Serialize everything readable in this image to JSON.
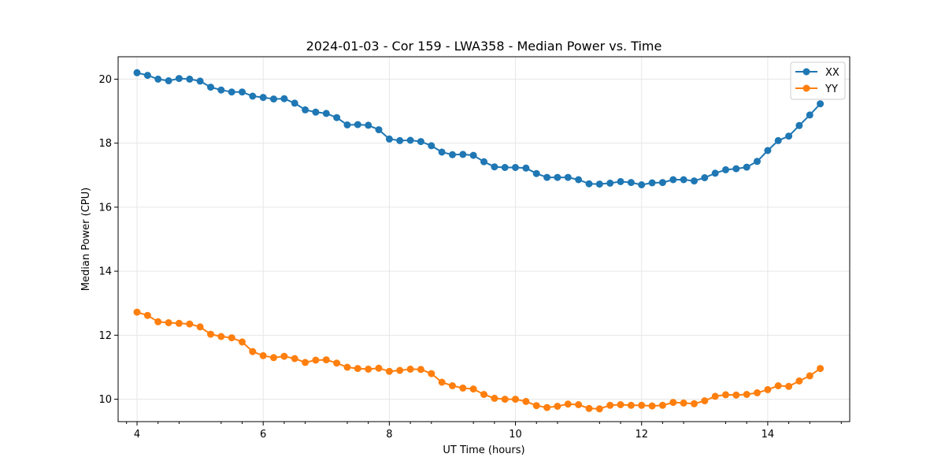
{
  "chart_data": {
    "type": "line",
    "title": "2024-01-03 - Cor 159 - LWA358 - Median Power vs. Time",
    "xlabel": "UT Time (hours)",
    "ylabel": "Median Power (CPU)",
    "xlim": [
      3.7,
      15.3
    ],
    "ylim": [
      9.3,
      20.7
    ],
    "xticks": [
      4,
      6,
      8,
      10,
      12,
      14
    ],
    "yticks": [
      10,
      12,
      14,
      16,
      18,
      20
    ],
    "xtick_labels": [
      "4",
      "6",
      "8",
      "10",
      "12",
      "14"
    ],
    "ytick_labels": [
      "10",
      "12",
      "14",
      "16",
      "18",
      "20"
    ],
    "x_minor_ticks": [
      3.8333,
      4.3333,
      4.6667,
      5.3333,
      5.6667,
      6.3333,
      6.6667,
      7.3333,
      7.6667,
      8.3333,
      8.6667,
      9.3333,
      9.6667,
      10.3333,
      10.6667,
      11.3333,
      11.6667,
      12.3333,
      12.6667,
      13.3333,
      13.6667,
      14.3333,
      14.6667,
      15.1667
    ],
    "grid": true,
    "legend_position": "top-right",
    "x": [
      4.0,
      4.1667,
      4.3333,
      4.5,
      4.6667,
      4.8333,
      5.0,
      5.1667,
      5.3333,
      5.5,
      5.6667,
      5.8333,
      6.0,
      6.1667,
      6.3333,
      6.5,
      6.6667,
      6.8333,
      7.0,
      7.1667,
      7.3333,
      7.5,
      7.6667,
      7.8333,
      8.0,
      8.1667,
      8.3333,
      8.5,
      8.6667,
      8.8333,
      9.0,
      9.1667,
      9.3333,
      9.5,
      9.6667,
      9.8333,
      10.0,
      10.1667,
      10.3333,
      10.5,
      10.6667,
      10.8333,
      11.0,
      11.1667,
      11.3333,
      11.5,
      11.6667,
      11.8333,
      12.0,
      12.1667,
      12.3333,
      12.5,
      12.6667,
      12.8333,
      13.0,
      13.1667,
      13.3333,
      13.5,
      13.6667,
      13.8333,
      14.0,
      14.1667,
      14.3333,
      14.5,
      14.6667,
      14.8333
    ],
    "series": [
      {
        "name": "XX",
        "color": "#1f77b4",
        "values": [
          20.2,
          20.12,
          20.0,
          19.95,
          20.02,
          20.0,
          19.94,
          19.75,
          19.66,
          19.6,
          19.6,
          19.47,
          19.43,
          19.38,
          19.39,
          19.25,
          19.04,
          18.97,
          18.93,
          18.8,
          18.57,
          18.58,
          18.56,
          18.42,
          18.13,
          18.08,
          18.09,
          18.05,
          17.92,
          17.72,
          17.64,
          17.65,
          17.62,
          17.42,
          17.26,
          17.24,
          17.24,
          17.22,
          17.05,
          16.93,
          16.93,
          16.93,
          16.86,
          16.73,
          16.72,
          16.75,
          16.8,
          16.77,
          16.7,
          16.76,
          16.77,
          16.86,
          16.86,
          16.82,
          16.92,
          17.06,
          17.17,
          17.2,
          17.25,
          17.43,
          17.77,
          18.08,
          18.22,
          18.55,
          18.88,
          19.23
        ]
      },
      {
        "name": "YY",
        "color": "#ff7f0e",
        "values": [
          12.72,
          12.62,
          12.42,
          12.39,
          12.37,
          12.35,
          12.26,
          12.03,
          11.96,
          11.92,
          11.79,
          11.49,
          11.36,
          11.3,
          11.34,
          11.27,
          11.15,
          11.22,
          11.23,
          11.13,
          11.0,
          10.96,
          10.94,
          10.97,
          10.87,
          10.9,
          10.94,
          10.93,
          10.8,
          10.53,
          10.42,
          10.35,
          10.32,
          10.15,
          10.03,
          10.0,
          10.0,
          9.93,
          9.8,
          9.74,
          9.78,
          9.85,
          9.83,
          9.71,
          9.7,
          9.81,
          9.83,
          9.81,
          9.81,
          9.79,
          9.81,
          9.9,
          9.88,
          9.86,
          9.95,
          10.09,
          10.14,
          10.13,
          10.15,
          10.2,
          10.3,
          10.42,
          10.4,
          10.57,
          10.73,
          10.96
        ]
      }
    ]
  }
}
